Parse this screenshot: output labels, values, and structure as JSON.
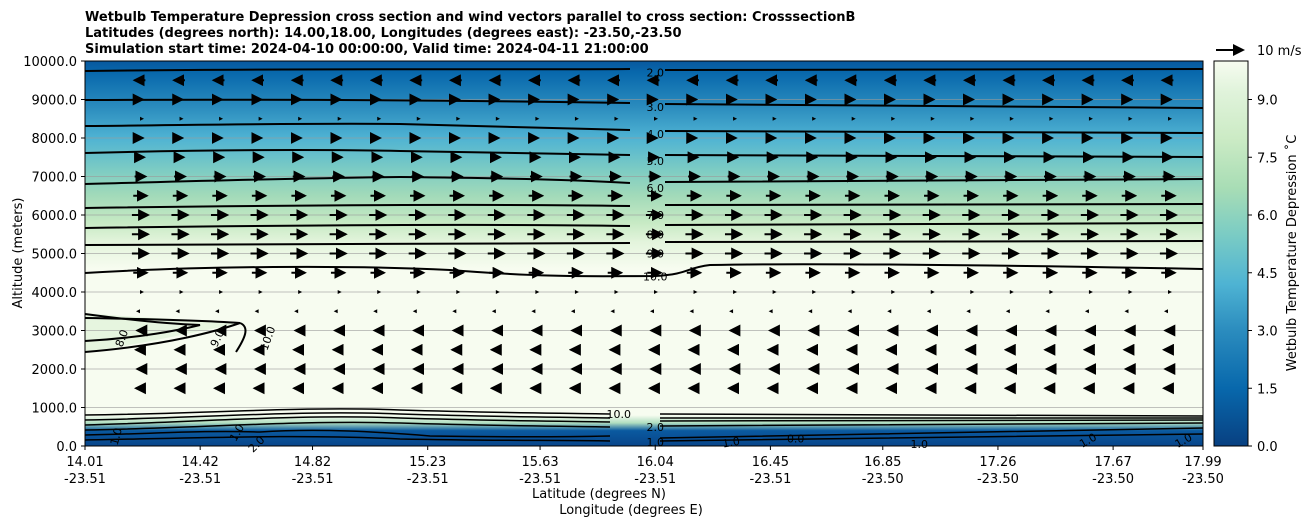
{
  "chart_data": {
    "type": "contour",
    "title_lines": [
      "Wetbulb Temperature Depression cross section and wind vectors parallel to cross section: CrosssectionB",
      "Latitudes (degrees north): 14.00,18.00, Longitudes (degrees east): -23.50,-23.50",
      "Simulation start time: 2024-04-10 00:00:00, Valid time: 2024-04-11 21:00:00"
    ],
    "xlabel": "Latitude (degrees N)",
    "xlabel2": "Longitude (degrees E)",
    "ylabel": "Altitude (meters)",
    "ylim": [
      0,
      10000
    ],
    "y_ticks": [
      "0.0",
      "1000.0",
      "2000.0",
      "3000.0",
      "4000.0",
      "5000.0",
      "6000.0",
      "7000.0",
      "8000.0",
      "9000.0",
      "10000.0"
    ],
    "x_ticks_lat": [
      "14.01",
      "14.42",
      "14.82",
      "15.23",
      "15.63",
      "16.04",
      "16.45",
      "16.85",
      "17.26",
      "17.67",
      "17.99"
    ],
    "x_ticks_lon": [
      "-23.51",
      "-23.51",
      "-23.51",
      "-23.51",
      "-23.51",
      "-23.51",
      "-23.51",
      "-23.50",
      "-23.50",
      "-23.50",
      "-23.50"
    ],
    "colorbar": {
      "label": "Wetbulb Temperature Depression ˚C",
      "range": [
        0,
        10
      ],
      "ticks": [
        "0.0",
        "1.5",
        "3.0",
        "4.5",
        "6.0",
        "7.5",
        "9.0"
      ],
      "colormap": "GnBu_r"
    },
    "quiver_key": {
      "label": "10 m/s",
      "speed": 10
    },
    "contour_labels": [
      {
        "text": "2.0",
        "lat": 16.04,
        "alt": 9700
      },
      {
        "text": "3.0",
        "lat": 16.04,
        "alt": 8800
      },
      {
        "text": "4.0",
        "lat": 16.04,
        "alt": 8100
      },
      {
        "text": "5.0",
        "lat": 16.04,
        "alt": 7400
      },
      {
        "text": "6.0",
        "lat": 16.04,
        "alt": 6700
      },
      {
        "text": "7.0",
        "lat": 16.04,
        "alt": 6000
      },
      {
        "text": "8.0",
        "lat": 16.04,
        "alt": 5500
      },
      {
        "text": "9.0",
        "lat": 16.04,
        "alt": 5000
      },
      {
        "text": "10.0",
        "lat": 16.04,
        "alt": 4400
      },
      {
        "text": "8.0",
        "lat": 14.14,
        "alt": 2800,
        "rot": -70
      },
      {
        "text": "9.0",
        "lat": 14.48,
        "alt": 2800,
        "rot": -65
      },
      {
        "text": "10.0",
        "lat": 14.66,
        "alt": 2800,
        "rot": -70
      },
      {
        "text": "10.0",
        "lat": 15.91,
        "alt": 830
      },
      {
        "text": "2.0",
        "lat": 16.04,
        "alt": 500
      },
      {
        "text": "1.0",
        "lat": 16.04,
        "alt": 100
      },
      {
        "text": "1.0",
        "lat": 14.12,
        "alt": 250,
        "rot": -75
      },
      {
        "text": "1.0",
        "lat": 14.55,
        "alt": 350,
        "rot": -60
      },
      {
        "text": "2.0",
        "lat": 14.62,
        "alt": 50,
        "rot": -45
      },
      {
        "text": "1.0",
        "lat": 16.31,
        "alt": 100,
        "rot": -10
      },
      {
        "text": "0.0",
        "lat": 16.54,
        "alt": 200
      },
      {
        "text": "1.0",
        "lat": 16.98,
        "alt": 50
      },
      {
        "text": "1.0",
        "lat": 17.58,
        "alt": 150,
        "rot": -30
      },
      {
        "text": "1.0",
        "lat": 17.92,
        "alt": 150,
        "rot": -30
      }
    ],
    "wind_rows": [
      {
        "alt": 9500,
        "u": -4
      },
      {
        "alt": 9000,
        "u": 2
      },
      {
        "alt": 8500,
        "u": 1
      },
      {
        "alt": 8000,
        "u": 2
      },
      {
        "alt": 7500,
        "u": 3
      },
      {
        "alt": 7000,
        "u": 4
      },
      {
        "alt": 6500,
        "u": 5
      },
      {
        "alt": 6000,
        "u": 6
      },
      {
        "alt": 5500,
        "u": 6
      },
      {
        "alt": 5000,
        "u": 6
      },
      {
        "alt": 4500,
        "u": 5
      },
      {
        "alt": 4000,
        "u": 1
      },
      {
        "alt": 3500,
        "u": -1
      },
      {
        "alt": 3000,
        "u": -2
      },
      {
        "alt": 2500,
        "u": -3
      },
      {
        "alt": 2000,
        "u": -2
      },
      {
        "alt": 1500,
        "u": -3
      }
    ]
  }
}
